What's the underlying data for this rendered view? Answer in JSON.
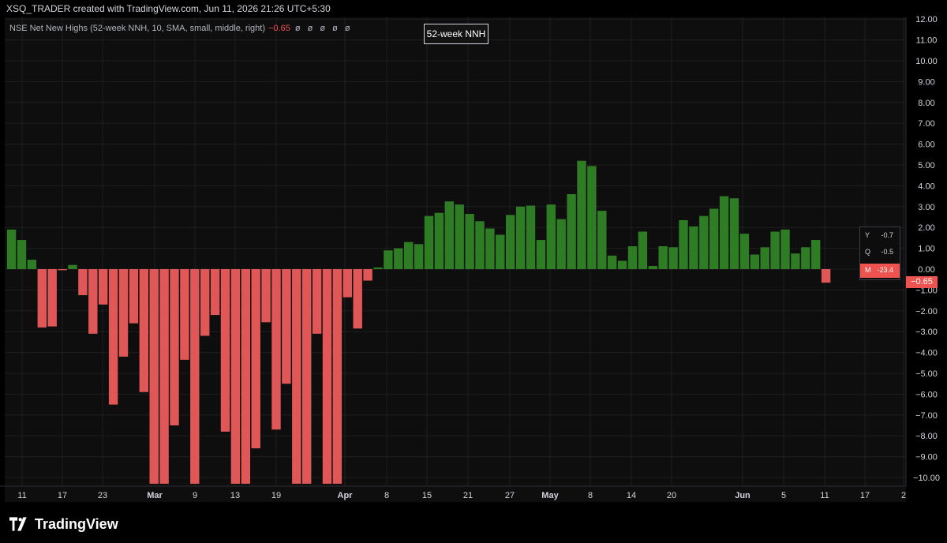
{
  "header": {
    "attribution": "XSQ_TRADER created with TradingView.com, Jun 11, 2026 21:26 UTC+5:30"
  },
  "legend": {
    "indicator": "NSE Net New Highs (52-week NNH, 10, SMA, small, middle, right)",
    "value": "−0.65",
    "zeros": "ø ø ø ø ø"
  },
  "title_box": "52-week NNH",
  "side_panel": [
    {
      "key": "Y",
      "value": "-0.7",
      "highlight": false
    },
    {
      "key": "Q",
      "value": "-0.5",
      "highlight": false
    },
    {
      "key": "M",
      "value": "-23.4",
      "highlight": true
    }
  ],
  "price_tag": "−0.65",
  "brand": "TradingView",
  "colors": {
    "positive": "#2e7d24",
    "negative": "#e05757",
    "background": "#0e0e0e",
    "grid": "#1f1f1f",
    "axis_text": "#d1d4dc"
  },
  "chart_data": {
    "type": "bar",
    "ylim": [
      -10.5,
      12.2
    ],
    "y_ticks": [
      "12.00",
      "11.00",
      "10.00",
      "9.00",
      "8.00",
      "7.00",
      "6.00",
      "5.00",
      "4.00",
      "3.00",
      "2.00",
      "1.00",
      "0.00",
      "−1.00",
      "−2.00",
      "−3.00",
      "−4.00",
      "−5.00",
      "−6.00",
      "−7.00",
      "−8.00",
      "−9.00",
      "−10.00"
    ],
    "x_ticks": [
      "11",
      "17",
      "23",
      "Mar",
      "9",
      "13",
      "19",
      "Apr",
      "8",
      "15",
      "21",
      "27",
      "May",
      "8",
      "14",
      "20",
      "Jun",
      "5",
      "11",
      "17",
      "2"
    ],
    "values": [
      1.9,
      1.4,
      0.45,
      -2.8,
      -2.75,
      -0.05,
      0.2,
      -1.25,
      -3.1,
      -1.7,
      -6.5,
      -4.2,
      -2.6,
      -5.9,
      -10.3,
      -10.3,
      -7.5,
      -4.35,
      -10.3,
      -3.2,
      -2.2,
      -7.8,
      -10.3,
      -10.3,
      -8.6,
      -2.55,
      -7.7,
      -5.5,
      -10.3,
      -10.3,
      -3.1,
      -10.3,
      -10.3,
      -1.35,
      -2.85,
      -0.55,
      0.08,
      0.9,
      1.0,
      1.3,
      1.2,
      2.55,
      2.7,
      3.25,
      3.1,
      2.65,
      2.3,
      1.95,
      1.65,
      2.6,
      3.0,
      3.05,
      1.4,
      3.1,
      2.4,
      3.6,
      5.2,
      4.95,
      2.8,
      0.65,
      0.4,
      1.1,
      1.8,
      0.15,
      1.1,
      1.05,
      2.35,
      2.05,
      2.55,
      2.9,
      3.5,
      3.4,
      1.7,
      0.7,
      1.05,
      1.8,
      1.9,
      0.75,
      1.05,
      1.4,
      -0.65
    ]
  }
}
